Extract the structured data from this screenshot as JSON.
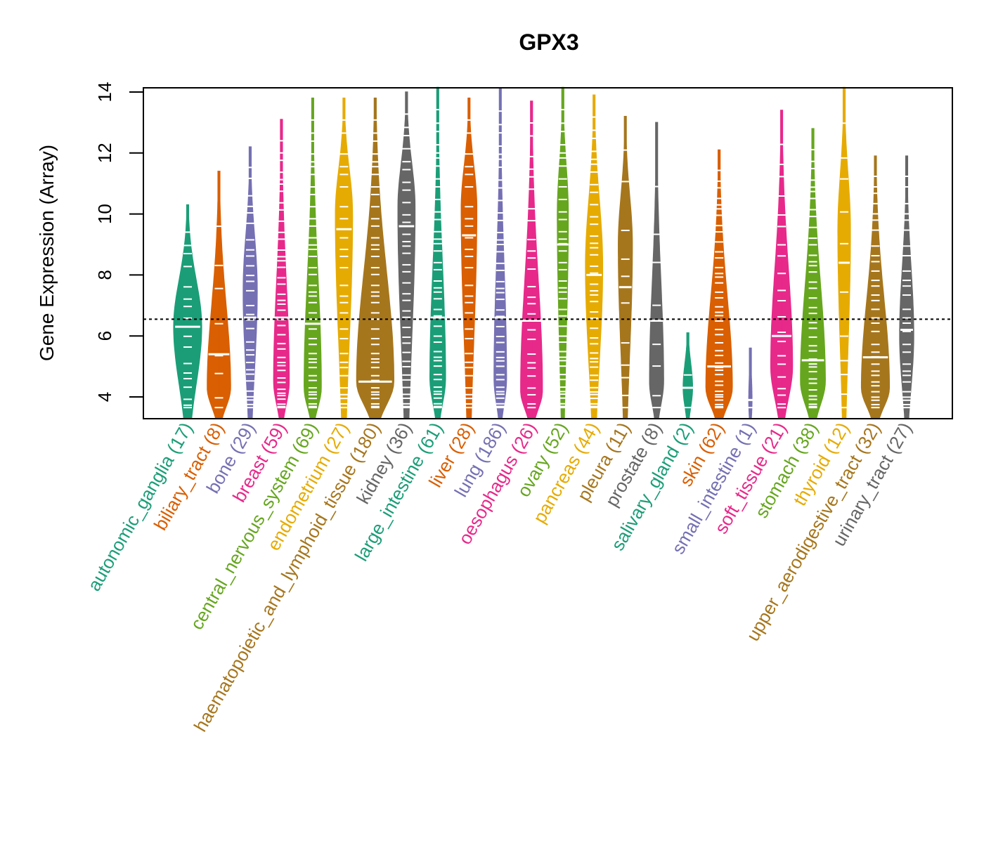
{
  "chart_data": {
    "type": "violin",
    "title": "GPX3",
    "xlabel": "",
    "ylabel": "Gene Expression (Array)",
    "ylim": [
      3.3,
      14.15
    ],
    "yticks": [
      4,
      6,
      8,
      10,
      12,
      14
    ],
    "reference_line": 6.55,
    "grid": false,
    "legend": "none",
    "categories": [
      {
        "name": "autonomic_ganglia",
        "n": 17,
        "label": "autonomic_ganglia (17)",
        "color": "#1B9E77",
        "min": 3.3,
        "max": 10.3,
        "median": 6.3,
        "mode": 6.3,
        "maxw": 0.9
      },
      {
        "name": "biliary_tract",
        "n": 8,
        "label": "biliary_tract (8)",
        "color": "#D95F02",
        "min": 3.3,
        "max": 11.4,
        "median": 5.4,
        "mode": 4.3,
        "maxw": 0.75
      },
      {
        "name": "bone",
        "n": 29,
        "label": "bone (29)",
        "color": "#7570B3",
        "min": 3.3,
        "max": 12.2,
        "median": 6.6,
        "mode": 7.5,
        "maxw": 0.45
      },
      {
        "name": "breast",
        "n": 59,
        "label": "breast (59)",
        "color": "#E7298A",
        "min": 3.3,
        "max": 13.1,
        "median": 6.6,
        "mode": 4.5,
        "maxw": 0.5
      },
      {
        "name": "central_nervous_system",
        "n": 69,
        "label": "central_nervous_system (69)",
        "color": "#66A61E",
        "min": 3.3,
        "max": 13.8,
        "median": 6.4,
        "mode": 4.3,
        "maxw": 0.55
      },
      {
        "name": "endometrium",
        "n": 27,
        "label": "endometrium (27)",
        "color": "#E6AB02",
        "min": 3.3,
        "max": 13.8,
        "median": 9.5,
        "mode": 10.0,
        "maxw": 0.55
      },
      {
        "name": "haematopoietic_and_lymphoid_tissue",
        "n": 180,
        "label": "haematopoietic_and_lymphoid_tissue (180)",
        "color": "#A6761D",
        "min": 3.3,
        "max": 13.8,
        "median": 4.5,
        "mode": 4.5,
        "maxw": 1.2
      },
      {
        "name": "kidney",
        "n": 36,
        "label": "kidney (36)",
        "color": "#666666",
        "min": 3.3,
        "max": 14.0,
        "median": 9.6,
        "mode": 10.2,
        "maxw": 0.55
      },
      {
        "name": "large_intestine",
        "n": 61,
        "label": "large_intestine (61)",
        "color": "#1B9E77",
        "min": 3.3,
        "max": 14.15,
        "median": 6.6,
        "mode": 4.6,
        "maxw": 0.5
      },
      {
        "name": "liver",
        "n": 28,
        "label": "liver (28)",
        "color": "#D95F02",
        "min": 3.3,
        "max": 13.8,
        "median": 9.3,
        "mode": 10.2,
        "maxw": 0.5
      },
      {
        "name": "lung",
        "n": 186,
        "label": "lung (186)",
        "color": "#7570B3",
        "min": 3.3,
        "max": 14.1,
        "median": 6.6,
        "mode": 4.6,
        "maxw": 0.4
      },
      {
        "name": "oesophagus",
        "n": 26,
        "label": "oesophagus (26)",
        "color": "#E7298A",
        "min": 3.3,
        "max": 13.7,
        "median": 6.5,
        "mode": 4.2,
        "maxw": 0.7
      },
      {
        "name": "ovary",
        "n": 52,
        "label": "ovary (52)",
        "color": "#66A61E",
        "min": 3.3,
        "max": 14.15,
        "median": 9.0,
        "mode": 10.0,
        "maxw": 0.35
      },
      {
        "name": "pancreas",
        "n": 44,
        "label": "pancreas (44)",
        "color": "#E6AB02",
        "min": 3.3,
        "max": 13.9,
        "median": 8.0,
        "mode": 8.3,
        "maxw": 0.55
      },
      {
        "name": "pleura",
        "n": 11,
        "label": "pleura (11)",
        "color": "#A6761D",
        "min": 3.3,
        "max": 13.2,
        "median": 7.6,
        "mode": 9.0,
        "maxw": 0.45
      },
      {
        "name": "prostate",
        "n": 8,
        "label": "prostate (8)",
        "color": "#666666",
        "min": 3.3,
        "max": 13.0,
        "median": 6.5,
        "mode": 4.5,
        "maxw": 0.45
      },
      {
        "name": "salivary_gland",
        "n": 2,
        "label": "salivary_gland (2)",
        "color": "#1B9E77",
        "min": 3.3,
        "max": 6.1,
        "median": 4.3,
        "mode": 4.3,
        "maxw": 0.3
      },
      {
        "name": "skin",
        "n": 62,
        "label": "skin (62)",
        "color": "#D95F02",
        "min": 3.3,
        "max": 12.1,
        "median": 5.0,
        "mode": 4.3,
        "maxw": 0.85
      },
      {
        "name": "small_intestine",
        "n": 1,
        "label": "small_intestine (1)",
        "color": "#7570B3",
        "min": 3.3,
        "max": 5.6,
        "median": 3.9,
        "mode": 3.9,
        "maxw": 0.1
      },
      {
        "name": "soft_tissue",
        "n": 21,
        "label": "soft_tissue (21)",
        "color": "#E7298A",
        "min": 3.3,
        "max": 13.4,
        "median": 6.0,
        "mode": 5.0,
        "maxw": 0.7
      },
      {
        "name": "stomach",
        "n": 38,
        "label": "stomach (38)",
        "color": "#66A61E",
        "min": 3.3,
        "max": 12.8,
        "median": 5.2,
        "mode": 4.5,
        "maxw": 0.8
      },
      {
        "name": "thyroid",
        "n": 12,
        "label": "thyroid (12)",
        "color": "#E6AB02",
        "min": 3.3,
        "max": 14.15,
        "median": 8.4,
        "mode": 9.5,
        "maxw": 0.4
      },
      {
        "name": "upper_aerodigestive_tract",
        "n": 32,
        "label": "upper_aerodigestive_tract (32)",
        "color": "#A6761D",
        "min": 3.3,
        "max": 11.9,
        "median": 5.3,
        "mode": 4.3,
        "maxw": 0.9
      },
      {
        "name": "urinary_tract",
        "n": 27,
        "label": "urinary_tract (27)",
        "color": "#666666",
        "min": 3.3,
        "max": 11.9,
        "median": 6.2,
        "mode": 6.0,
        "maxw": 0.45
      }
    ]
  }
}
